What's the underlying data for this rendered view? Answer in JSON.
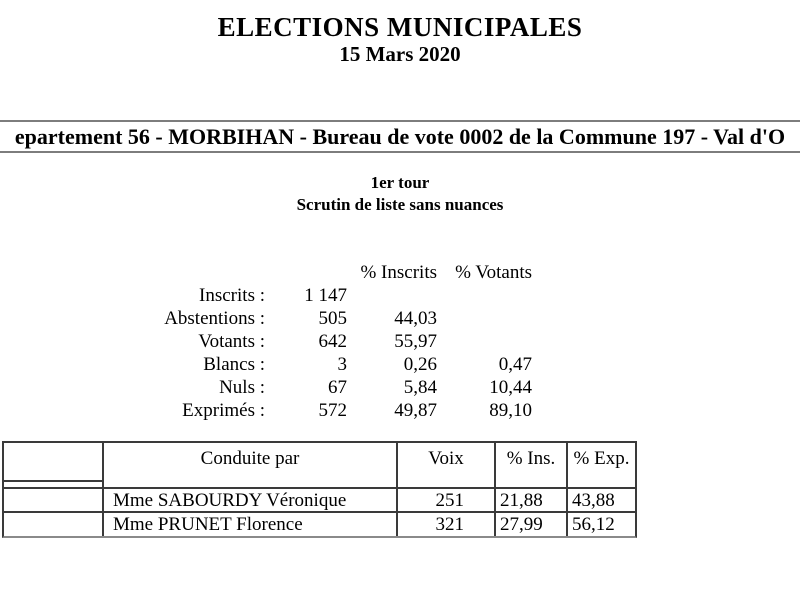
{
  "page": {
    "title": "ELECTIONS MUNICIPALES",
    "date": "15 Mars 2020"
  },
  "location_banner": {
    "text": "epartement 56 - MORBIHAN - Bureau de vote 0002 de la Commune 197 - Val d'O"
  },
  "round": {
    "line1": "1er tour",
    "line2": "Scrutin de liste sans nuances"
  },
  "participation": {
    "col_headers": {
      "pct_inscrits": "% Inscrits",
      "pct_votants": "% Votants"
    },
    "rows": [
      {
        "label": "Inscrits :",
        "value": "1 147",
        "pct_inscrits": "",
        "pct_votants": ""
      },
      {
        "label": "Abstentions :",
        "value": "505",
        "pct_inscrits": "44,03",
        "pct_votants": ""
      },
      {
        "label": "Votants :",
        "value": "642",
        "pct_inscrits": "55,97",
        "pct_votants": ""
      },
      {
        "label": "Blancs :",
        "value": "3",
        "pct_inscrits": "0,26",
        "pct_votants": "0,47"
      },
      {
        "label": "Nuls :",
        "value": "67",
        "pct_inscrits": "5,84",
        "pct_votants": "10,44"
      },
      {
        "label": "Exprimés :",
        "value": "572",
        "pct_inscrits": "49,87",
        "pct_votants": "89,10"
      }
    ]
  },
  "results_table": {
    "headers": {
      "conduite": "Conduite par",
      "voix": "Voix",
      "ins": "% Ins.",
      "exp": "% Exp."
    },
    "rows": [
      {
        "conduite": "Mme SABOURDY Véronique",
        "voix": "251",
        "ins": "21,88",
        "exp": "43,88"
      },
      {
        "conduite": "Mme PRUNET Florence",
        "voix": "321",
        "ins": "27,99",
        "exp": "56,12"
      }
    ]
  },
  "colors": {
    "text": "#000000",
    "banner_border": "#7d7d7d",
    "table_border": "#3a3a3a"
  }
}
